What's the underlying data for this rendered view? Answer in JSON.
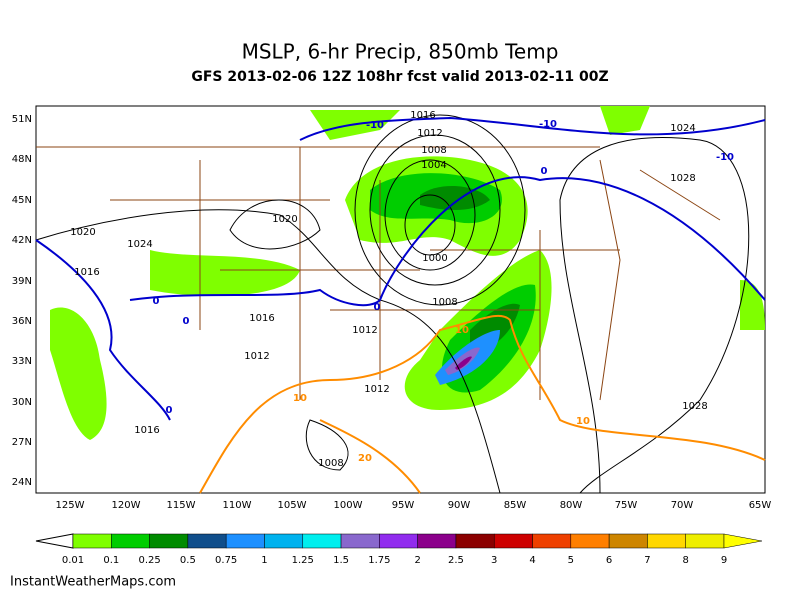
{
  "header": {
    "title": "MSLP, 6-hr Precip, 850mb Temp",
    "subtitle": "GFS 2013-02-06 12Z 108hr fcst valid 2013-02-11 00Z"
  },
  "map": {
    "lat_labels": [
      "51N",
      "48N",
      "45N",
      "42N",
      "39N",
      "36N",
      "33N",
      "30N",
      "27N",
      "24N"
    ],
    "lon_labels": [
      "125W",
      "120W",
      "115W",
      "110W",
      "105W",
      "100W",
      "95W",
      "90W",
      "85W",
      "80W",
      "75W",
      "70W",
      "65W"
    ],
    "isobar_labels": [
      "1016",
      "1012",
      "1008",
      "1004",
      "1020",
      "1020",
      "1024",
      "1016",
      "1000",
      "1008",
      "1016",
      "1012",
      "1012",
      "1012",
      "1016",
      "1008",
      "1024",
      "1028",
      "1028"
    ],
    "cold_isotherm_labels": [
      "-10",
      "-10",
      "-10",
      "0",
      "0",
      "0",
      "0",
      "0"
    ],
    "warm_isotherm_labels": [
      "10",
      "10",
      "20",
      "10"
    ]
  },
  "colorbar": {
    "labels": [
      "0.01",
      "0.1",
      "0.25",
      "0.5",
      "0.75",
      "1",
      "1.25",
      "1.5",
      "1.75",
      "2",
      "2.5",
      "3",
      "4",
      "5",
      "6",
      "7",
      "8",
      "9"
    ],
    "colors": [
      "#7fff00",
      "#00cd00",
      "#008b00",
      "#104e8b",
      "#1e90ff",
      "#00b2ee",
      "#00eeee",
      "#8968cd",
      "#912cee",
      "#8b008b",
      "#8b0000",
      "#cd0000",
      "#ee4000",
      "#ff7f00",
      "#cd8500",
      "#ffd700",
      "#eeee00",
      "#ffff00"
    ]
  },
  "footer": {
    "credit": "InstantWeatherMaps.com"
  }
}
